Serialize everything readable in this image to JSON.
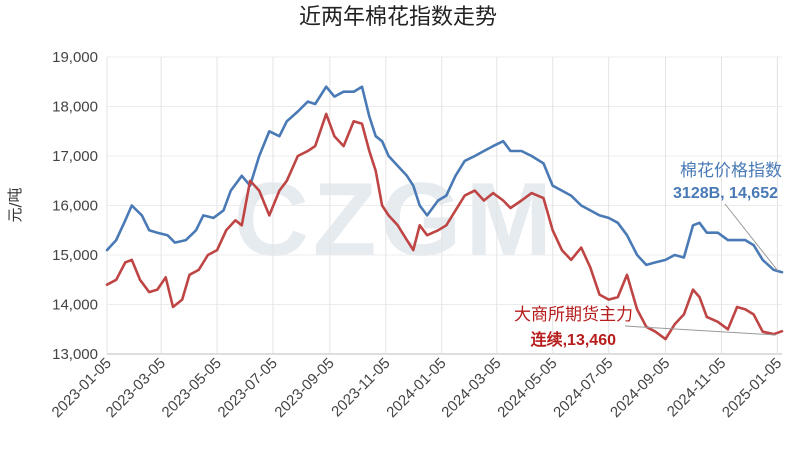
{
  "chart_data": {
    "type": "line",
    "title": "近两年棉花指数走势",
    "ylabel": "元/吨",
    "ylim": [
      13000,
      19000
    ],
    "yticks": [
      "13,000",
      "14,000",
      "15,000",
      "16,000",
      "17,000",
      "18,000",
      "19,000"
    ],
    "yvalues": [
      13000,
      14000,
      15000,
      16000,
      17000,
      18000,
      19000
    ],
    "xticks": [
      "2023-01-05",
      "2023-03-05",
      "2023-05-05",
      "2023-07-05",
      "2023-09-05",
      "2023-11-05",
      "2024-01-05",
      "2024-03-05",
      "2024-05-05",
      "2024-07-05",
      "2024-09-05",
      "2024-11-05",
      "2025-01-05"
    ],
    "xlim": [
      "2023-01-05",
      "2025-01-10"
    ],
    "grid": "vertical",
    "watermark": "CZGM",
    "series": [
      {
        "name": "棉花价格指数",
        "color": "#4a7ab5",
        "points": [
          [
            "2023-01-05",
            15100
          ],
          [
            "2023-01-15",
            15300
          ],
          [
            "2023-01-25",
            15700
          ],
          [
            "2023-02-01",
            16000
          ],
          [
            "2023-02-12",
            15800
          ],
          [
            "2023-02-20",
            15500
          ],
          [
            "2023-03-01",
            15450
          ],
          [
            "2023-03-12",
            15400
          ],
          [
            "2023-03-20",
            15250
          ],
          [
            "2023-04-01",
            15300
          ],
          [
            "2023-04-12",
            15500
          ],
          [
            "2023-04-20",
            15800
          ],
          [
            "2023-05-01",
            15750
          ],
          [
            "2023-05-12",
            15900
          ],
          [
            "2023-05-20",
            16300
          ],
          [
            "2023-06-01",
            16600
          ],
          [
            "2023-06-10",
            16400
          ],
          [
            "2023-06-20",
            17000
          ],
          [
            "2023-07-01",
            17500
          ],
          [
            "2023-07-12",
            17400
          ],
          [
            "2023-07-20",
            17700
          ],
          [
            "2023-08-01",
            17900
          ],
          [
            "2023-08-12",
            18100
          ],
          [
            "2023-08-20",
            18050
          ],
          [
            "2023-09-01",
            18400
          ],
          [
            "2023-09-10",
            18200
          ],
          [
            "2023-09-20",
            18300
          ],
          [
            "2023-10-01",
            18300
          ],
          [
            "2023-10-10",
            18400
          ],
          [
            "2023-10-18",
            17800
          ],
          [
            "2023-10-25",
            17400
          ],
          [
            "2023-11-01",
            17300
          ],
          [
            "2023-11-08",
            17000
          ],
          [
            "2023-11-18",
            16800
          ],
          [
            "2023-11-28",
            16600
          ],
          [
            "2023-12-05",
            16400
          ],
          [
            "2023-12-12",
            16000
          ],
          [
            "2023-12-20",
            15800
          ],
          [
            "2024-01-01",
            16100
          ],
          [
            "2024-01-10",
            16200
          ],
          [
            "2024-01-20",
            16600
          ],
          [
            "2024-01-30",
            16900
          ],
          [
            "2024-02-10",
            17000
          ],
          [
            "2024-02-20",
            17100
          ],
          [
            "2024-03-01",
            17200
          ],
          [
            "2024-03-12",
            17300
          ],
          [
            "2024-03-20",
            17100
          ],
          [
            "2024-04-01",
            17100
          ],
          [
            "2024-04-12",
            17000
          ],
          [
            "2024-04-25",
            16850
          ],
          [
            "2024-05-05",
            16400
          ],
          [
            "2024-05-15",
            16300
          ],
          [
            "2024-05-25",
            16200
          ],
          [
            "2024-06-05",
            16000
          ],
          [
            "2024-06-15",
            15900
          ],
          [
            "2024-06-25",
            15800
          ],
          [
            "2024-07-05",
            15750
          ],
          [
            "2024-07-15",
            15650
          ],
          [
            "2024-07-25",
            15400
          ],
          [
            "2024-08-05",
            15000
          ],
          [
            "2024-08-15",
            14800
          ],
          [
            "2024-08-25",
            14850
          ],
          [
            "2024-09-05",
            14900
          ],
          [
            "2024-09-15",
            15000
          ],
          [
            "2024-09-25",
            14950
          ],
          [
            "2024-10-05",
            15600
          ],
          [
            "2024-10-12",
            15650
          ],
          [
            "2024-10-20",
            15450
          ],
          [
            "2024-11-01",
            15450
          ],
          [
            "2024-11-12",
            15300
          ],
          [
            "2024-11-22",
            15300
          ],
          [
            "2024-12-01",
            15300
          ],
          [
            "2024-12-10",
            15200
          ],
          [
            "2024-12-20",
            14900
          ],
          [
            "2025-01-01",
            14700
          ],
          [
            "2025-01-10",
            14650
          ]
        ]
      },
      {
        "name": "大商所期货主力连续",
        "color": "#bf4545",
        "points": [
          [
            "2023-01-05",
            14400
          ],
          [
            "2023-01-15",
            14500
          ],
          [
            "2023-01-25",
            14850
          ],
          [
            "2023-02-01",
            14900
          ],
          [
            "2023-02-10",
            14500
          ],
          [
            "2023-02-20",
            14250
          ],
          [
            "2023-03-01",
            14300
          ],
          [
            "2023-03-10",
            14550
          ],
          [
            "2023-03-18",
            13950
          ],
          [
            "2023-03-28",
            14100
          ],
          [
            "2023-04-05",
            14600
          ],
          [
            "2023-04-15",
            14700
          ],
          [
            "2023-04-25",
            15000
          ],
          [
            "2023-05-05",
            15100
          ],
          [
            "2023-05-15",
            15500
          ],
          [
            "2023-05-25",
            15700
          ],
          [
            "2023-06-01",
            15600
          ],
          [
            "2023-06-10",
            16500
          ],
          [
            "2023-06-20",
            16300
          ],
          [
            "2023-07-01",
            15800
          ],
          [
            "2023-07-12",
            16300
          ],
          [
            "2023-07-20",
            16500
          ],
          [
            "2023-08-01",
            17000
          ],
          [
            "2023-08-12",
            17100
          ],
          [
            "2023-08-20",
            17200
          ],
          [
            "2023-09-01",
            17850
          ],
          [
            "2023-09-10",
            17400
          ],
          [
            "2023-09-20",
            17200
          ],
          [
            "2023-10-01",
            17700
          ],
          [
            "2023-10-10",
            17650
          ],
          [
            "2023-10-18",
            17100
          ],
          [
            "2023-10-25",
            16700
          ],
          [
            "2023-11-01",
            16000
          ],
          [
            "2023-11-08",
            15800
          ],
          [
            "2023-11-18",
            15600
          ],
          [
            "2023-11-28",
            15300
          ],
          [
            "2023-12-05",
            15100
          ],
          [
            "2023-12-12",
            15600
          ],
          [
            "2023-12-20",
            15400
          ],
          [
            "2024-01-01",
            15500
          ],
          [
            "2024-01-10",
            15600
          ],
          [
            "2024-01-20",
            15900
          ],
          [
            "2024-01-30",
            16200
          ],
          [
            "2024-02-10",
            16300
          ],
          [
            "2024-02-20",
            16100
          ],
          [
            "2024-03-01",
            16250
          ],
          [
            "2024-03-12",
            16100
          ],
          [
            "2024-03-20",
            15950
          ],
          [
            "2024-04-01",
            16100
          ],
          [
            "2024-04-12",
            16250
          ],
          [
            "2024-04-25",
            16150
          ],
          [
            "2024-05-05",
            15500
          ],
          [
            "2024-05-15",
            15100
          ],
          [
            "2024-05-25",
            14900
          ],
          [
            "2024-06-05",
            15150
          ],
          [
            "2024-06-15",
            14750
          ],
          [
            "2024-06-25",
            14200
          ],
          [
            "2024-07-05",
            14100
          ],
          [
            "2024-07-15",
            14150
          ],
          [
            "2024-07-25",
            14600
          ],
          [
            "2024-08-05",
            13900
          ],
          [
            "2024-08-15",
            13550
          ],
          [
            "2024-08-25",
            13450
          ],
          [
            "2024-09-05",
            13300
          ],
          [
            "2024-09-15",
            13600
          ],
          [
            "2024-09-25",
            13800
          ],
          [
            "2024-10-05",
            14300
          ],
          [
            "2024-10-12",
            14150
          ],
          [
            "2024-10-20",
            13750
          ],
          [
            "2024-11-01",
            13650
          ],
          [
            "2024-11-12",
            13500
          ],
          [
            "2024-11-22",
            13950
          ],
          [
            "2024-12-01",
            13900
          ],
          [
            "2024-12-10",
            13800
          ],
          [
            "2024-12-20",
            13450
          ],
          [
            "2025-01-01",
            13400
          ],
          [
            "2025-01-10",
            13460
          ]
        ]
      }
    ]
  },
  "annotations": {
    "blue_name": "棉花价格指数",
    "blue_value": "3128B, 14,652",
    "red_name": "大商所期货主力",
    "red_value": "连续,13,460"
  }
}
